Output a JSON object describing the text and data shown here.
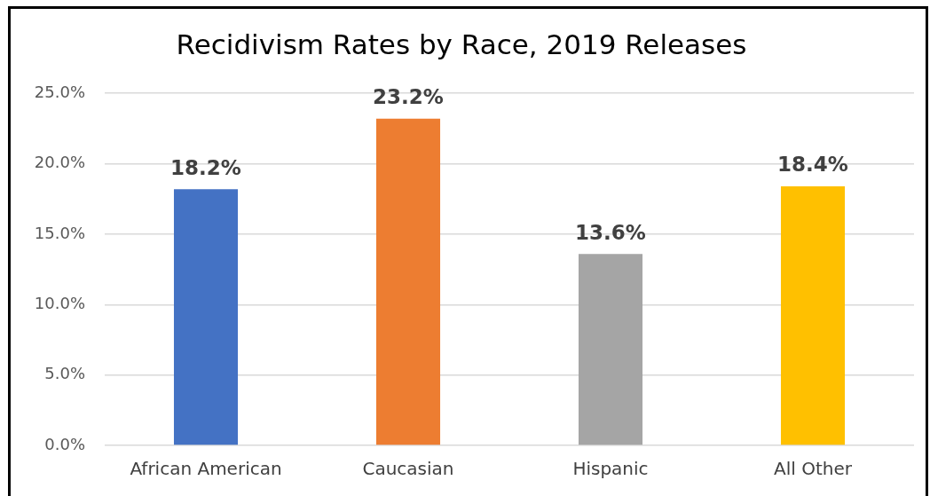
{
  "chart_data": {
    "type": "bar",
    "title": "Recidivism Rates by Race, 2019 Releases",
    "categories": [
      "African American",
      "Caucasian",
      "Hispanic",
      "All Other"
    ],
    "values": [
      18.2,
      23.2,
      13.6,
      18.4
    ],
    "colors": [
      "#4472c4",
      "#ed7d31",
      "#a5a5a5",
      "#ffc000"
    ],
    "value_labels": [
      "18.2%",
      "23.2%",
      "13.6%",
      "18.4%"
    ],
    "ylim": [
      0,
      25
    ],
    "yticks": [
      {
        "value": 0,
        "label": "0.0%"
      },
      {
        "value": 5,
        "label": "5.0%"
      },
      {
        "value": 10,
        "label": "10.0%"
      },
      {
        "value": 15,
        "label": "15.0%"
      },
      {
        "value": 20,
        "label": "20.0%"
      },
      {
        "value": 25,
        "label": "25.0%"
      }
    ],
    "grid": "y"
  }
}
